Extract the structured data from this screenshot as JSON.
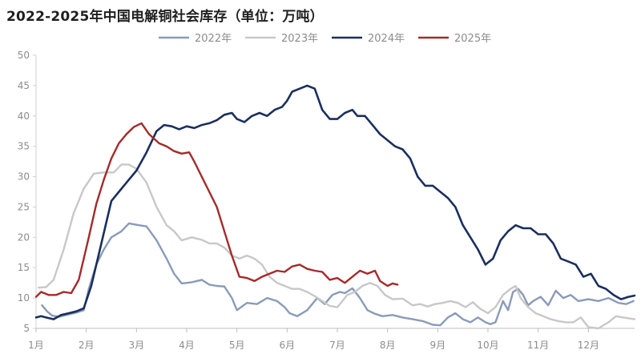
{
  "chart_data": {
    "type": "line",
    "title": "2022-2025年中国电解铜社会库存（单位：万吨）",
    "ylim": [
      5,
      50
    ],
    "yticks": [
      5,
      10,
      15,
      20,
      25,
      30,
      35,
      40,
      45,
      50
    ],
    "xlim": [
      1,
      12.92
    ],
    "xticks": [
      {
        "value": 1,
        "label": "1月"
      },
      {
        "value": 2,
        "label": "2月"
      },
      {
        "value": 3,
        "label": "3月"
      },
      {
        "value": 4,
        "label": "4月"
      },
      {
        "value": 5,
        "label": "5月"
      },
      {
        "value": 6,
        "label": "6月"
      },
      {
        "value": 7,
        "label": "7月"
      },
      {
        "value": 8,
        "label": "8月"
      },
      {
        "value": 9,
        "label": "9月"
      },
      {
        "value": 10,
        "label": "10月"
      },
      {
        "value": 11,
        "label": "11月"
      },
      {
        "value": 12,
        "label": "12月"
      }
    ],
    "grid": false,
    "legend": "top-center",
    "series": [
      {
        "name": "2022年",
        "color": "#8a9bb8",
        "points": [
          [
            1.12,
            8.8
          ],
          [
            1.22,
            7.8
          ],
          [
            1.32,
            7.1
          ],
          [
            1.45,
            6.9
          ],
          [
            1.6,
            7.2
          ],
          [
            1.8,
            7.6
          ],
          [
            1.95,
            8.0
          ],
          [
            2.05,
            11.5
          ],
          [
            2.2,
            15.5
          ],
          [
            2.35,
            18.0
          ],
          [
            2.5,
            20.0
          ],
          [
            2.7,
            21.0
          ],
          [
            2.85,
            22.3
          ],
          [
            3.05,
            22.0
          ],
          [
            3.2,
            21.8
          ],
          [
            3.4,
            19.5
          ],
          [
            3.6,
            16.5
          ],
          [
            3.75,
            14.0
          ],
          [
            3.9,
            12.4
          ],
          [
            4.1,
            12.6
          ],
          [
            4.3,
            13.0
          ],
          [
            4.45,
            12.2
          ],
          [
            4.6,
            12.0
          ],
          [
            4.75,
            11.9
          ],
          [
            4.9,
            10.0
          ],
          [
            5.0,
            8.0
          ],
          [
            5.2,
            9.2
          ],
          [
            5.4,
            9.0
          ],
          [
            5.6,
            10.0
          ],
          [
            5.8,
            9.5
          ],
          [
            5.95,
            8.5
          ],
          [
            6.05,
            7.5
          ],
          [
            6.2,
            7.0
          ],
          [
            6.4,
            8.0
          ],
          [
            6.6,
            10.0
          ],
          [
            6.75,
            9.0
          ],
          [
            6.9,
            10.5
          ],
          [
            7.05,
            11.0
          ],
          [
            7.15,
            10.8
          ],
          [
            7.3,
            11.6
          ],
          [
            7.45,
            10.0
          ],
          [
            7.6,
            8.0
          ],
          [
            7.75,
            7.4
          ],
          [
            7.9,
            7.0
          ],
          [
            8.1,
            7.2
          ],
          [
            8.3,
            6.8
          ],
          [
            8.5,
            6.5
          ],
          [
            8.7,
            6.2
          ],
          [
            8.9,
            5.6
          ],
          [
            9.05,
            5.5
          ],
          [
            9.2,
            6.8
          ],
          [
            9.35,
            7.5
          ],
          [
            9.5,
            6.5
          ],
          [
            9.65,
            6.0
          ],
          [
            9.8,
            6.8
          ],
          [
            9.95,
            6.0
          ],
          [
            10.05,
            5.7
          ],
          [
            10.15,
            6.0
          ],
          [
            10.3,
            9.5
          ],
          [
            10.4,
            8.0
          ],
          [
            10.5,
            11.0
          ],
          [
            10.6,
            11.5
          ],
          [
            10.7,
            10.5
          ],
          [
            10.8,
            8.8
          ],
          [
            10.9,
            9.5
          ],
          [
            11.05,
            10.2
          ],
          [
            11.2,
            8.8
          ],
          [
            11.35,
            11.2
          ],
          [
            11.5,
            10.0
          ],
          [
            11.65,
            10.5
          ],
          [
            11.8,
            9.5
          ],
          [
            12.0,
            9.8
          ],
          [
            12.2,
            9.5
          ],
          [
            12.4,
            10.0
          ],
          [
            12.6,
            9.2
          ],
          [
            12.75,
            9.0
          ],
          [
            12.9,
            9.5
          ]
        ]
      },
      {
        "name": "2023年",
        "color": "#c8c8c8",
        "points": [
          [
            1.05,
            11.7
          ],
          [
            1.2,
            11.8
          ],
          [
            1.35,
            13.0
          ],
          [
            1.55,
            18.0
          ],
          [
            1.75,
            24.0
          ],
          [
            1.95,
            28.0
          ],
          [
            2.15,
            30.5
          ],
          [
            2.35,
            30.7
          ],
          [
            2.55,
            30.7
          ],
          [
            2.7,
            32.0
          ],
          [
            2.85,
            32.0
          ],
          [
            3.0,
            31.3
          ],
          [
            3.2,
            29.0
          ],
          [
            3.4,
            25.0
          ],
          [
            3.6,
            22.0
          ],
          [
            3.75,
            21.0
          ],
          [
            3.9,
            19.5
          ],
          [
            4.1,
            20.0
          ],
          [
            4.3,
            19.6
          ],
          [
            4.45,
            19.0
          ],
          [
            4.6,
            19.0
          ],
          [
            4.75,
            18.3
          ],
          [
            4.9,
            17.0
          ],
          [
            5.05,
            16.5
          ],
          [
            5.2,
            17.0
          ],
          [
            5.35,
            16.5
          ],
          [
            5.5,
            15.5
          ],
          [
            5.65,
            13.5
          ],
          [
            5.8,
            12.5
          ],
          [
            5.95,
            12.0
          ],
          [
            6.1,
            11.5
          ],
          [
            6.25,
            11.5
          ],
          [
            6.4,
            11.0
          ],
          [
            6.55,
            10.3
          ],
          [
            6.7,
            9.5
          ],
          [
            6.85,
            8.7
          ],
          [
            7.0,
            8.5
          ],
          [
            7.1,
            9.5
          ],
          [
            7.2,
            10.5
          ],
          [
            7.35,
            11.0
          ],
          [
            7.5,
            12.0
          ],
          [
            7.65,
            12.5
          ],
          [
            7.8,
            12.0
          ],
          [
            7.95,
            10.5
          ],
          [
            8.1,
            9.8
          ],
          [
            8.3,
            9.9
          ],
          [
            8.5,
            8.8
          ],
          [
            8.65,
            9.0
          ],
          [
            8.8,
            8.6
          ],
          [
            8.95,
            9.0
          ],
          [
            9.1,
            9.2
          ],
          [
            9.25,
            9.5
          ],
          [
            9.4,
            9.2
          ],
          [
            9.55,
            8.5
          ],
          [
            9.7,
            9.3
          ],
          [
            9.85,
            8.2
          ],
          [
            10.0,
            7.5
          ],
          [
            10.15,
            8.5
          ],
          [
            10.3,
            10.5
          ],
          [
            10.45,
            11.5
          ],
          [
            10.55,
            12.0
          ],
          [
            10.65,
            10.0
          ],
          [
            10.8,
            8.5
          ],
          [
            10.95,
            7.5
          ],
          [
            11.1,
            7.0
          ],
          [
            11.25,
            6.5
          ],
          [
            11.4,
            6.2
          ],
          [
            11.55,
            6.0
          ],
          [
            11.7,
            6.0
          ],
          [
            11.85,
            6.8
          ],
          [
            12.0,
            5.2
          ],
          [
            12.2,
            5.0
          ],
          [
            12.4,
            6.0
          ],
          [
            12.55,
            7.0
          ],
          [
            12.7,
            6.8
          ],
          [
            12.85,
            6.6
          ],
          [
            12.92,
            6.5
          ]
        ]
      },
      {
        "name": "2024年",
        "color": "#1a2f5e",
        "points": [
          [
            1.0,
            6.8
          ],
          [
            1.1,
            7.0
          ],
          [
            1.2,
            6.8
          ],
          [
            1.35,
            6.5
          ],
          [
            1.5,
            7.2
          ],
          [
            1.65,
            7.5
          ],
          [
            1.8,
            7.8
          ],
          [
            1.95,
            8.3
          ],
          [
            2.1,
            12.0
          ],
          [
            2.3,
            19.0
          ],
          [
            2.5,
            26.0
          ],
          [
            2.65,
            27.5
          ],
          [
            2.8,
            29.0
          ],
          [
            3.0,
            31.0
          ],
          [
            3.2,
            34.0
          ],
          [
            3.4,
            37.5
          ],
          [
            3.55,
            38.5
          ],
          [
            3.7,
            38.3
          ],
          [
            3.85,
            37.8
          ],
          [
            4.0,
            38.3
          ],
          [
            4.15,
            38.0
          ],
          [
            4.3,
            38.5
          ],
          [
            4.45,
            38.8
          ],
          [
            4.6,
            39.3
          ],
          [
            4.75,
            40.2
          ],
          [
            4.9,
            40.5
          ],
          [
            5.0,
            39.5
          ],
          [
            5.15,
            39.0
          ],
          [
            5.3,
            40.0
          ],
          [
            5.45,
            40.5
          ],
          [
            5.6,
            40.0
          ],
          [
            5.75,
            41.0
          ],
          [
            5.9,
            41.5
          ],
          [
            6.0,
            42.5
          ],
          [
            6.1,
            44.0
          ],
          [
            6.25,
            44.5
          ],
          [
            6.4,
            45.0
          ],
          [
            6.55,
            44.5
          ],
          [
            6.7,
            41.0
          ],
          [
            6.85,
            39.5
          ],
          [
            7.0,
            39.5
          ],
          [
            7.15,
            40.5
          ],
          [
            7.3,
            41.0
          ],
          [
            7.4,
            40.0
          ],
          [
            7.55,
            40.0
          ],
          [
            7.7,
            38.5
          ],
          [
            7.85,
            37.0
          ],
          [
            8.0,
            36.0
          ],
          [
            8.15,
            35.0
          ],
          [
            8.3,
            34.5
          ],
          [
            8.45,
            33.0
          ],
          [
            8.6,
            30.0
          ],
          [
            8.75,
            28.5
          ],
          [
            8.9,
            28.5
          ],
          [
            9.05,
            27.5
          ],
          [
            9.2,
            26.5
          ],
          [
            9.35,
            25.0
          ],
          [
            9.5,
            22.0
          ],
          [
            9.65,
            20.0
          ],
          [
            9.8,
            18.0
          ],
          [
            9.95,
            15.5
          ],
          [
            10.1,
            16.5
          ],
          [
            10.25,
            19.5
          ],
          [
            10.4,
            21.0
          ],
          [
            10.55,
            22.0
          ],
          [
            10.7,
            21.5
          ],
          [
            10.85,
            21.5
          ],
          [
            11.0,
            20.5
          ],
          [
            11.15,
            20.5
          ],
          [
            11.3,
            19.0
          ],
          [
            11.45,
            16.5
          ],
          [
            11.6,
            16.0
          ],
          [
            11.75,
            15.5
          ],
          [
            11.9,
            13.5
          ],
          [
            12.05,
            14.0
          ],
          [
            12.2,
            12.0
          ],
          [
            12.35,
            11.5
          ],
          [
            12.5,
            10.5
          ],
          [
            12.65,
            9.8
          ],
          [
            12.8,
            10.2
          ],
          [
            12.92,
            10.4
          ]
        ]
      },
      {
        "name": "2025年",
        "color": "#a52a2a",
        "points": [
          [
            1.0,
            10.2
          ],
          [
            1.1,
            11.0
          ],
          [
            1.25,
            10.5
          ],
          [
            1.4,
            10.5
          ],
          [
            1.55,
            11.0
          ],
          [
            1.7,
            10.8
          ],
          [
            1.85,
            13.0
          ],
          [
            2.05,
            20.0
          ],
          [
            2.2,
            25.5
          ],
          [
            2.35,
            29.5
          ],
          [
            2.5,
            33.0
          ],
          [
            2.65,
            35.5
          ],
          [
            2.8,
            37.0
          ],
          [
            2.95,
            38.2
          ],
          [
            3.1,
            38.8
          ],
          [
            3.25,
            37.0
          ],
          [
            3.45,
            35.5
          ],
          [
            3.6,
            35.0
          ],
          [
            3.75,
            34.2
          ],
          [
            3.9,
            33.8
          ],
          [
            4.05,
            34.0
          ],
          [
            4.15,
            32.5
          ],
          [
            4.3,
            30.0
          ],
          [
            4.45,
            27.5
          ],
          [
            4.6,
            25.0
          ],
          [
            4.75,
            21.0
          ],
          [
            4.9,
            17.0
          ],
          [
            5.05,
            13.5
          ],
          [
            5.2,
            13.3
          ],
          [
            5.35,
            12.8
          ],
          [
            5.5,
            13.5
          ],
          [
            5.65,
            14.0
          ],
          [
            5.8,
            14.5
          ],
          [
            5.95,
            14.3
          ],
          [
            6.1,
            15.2
          ],
          [
            6.25,
            15.5
          ],
          [
            6.4,
            14.8
          ],
          [
            6.55,
            14.5
          ],
          [
            6.7,
            14.3
          ],
          [
            6.85,
            13.0
          ],
          [
            7.0,
            13.3
          ],
          [
            7.15,
            12.5
          ],
          [
            7.3,
            13.5
          ],
          [
            7.45,
            14.5
          ],
          [
            7.6,
            14.0
          ],
          [
            7.75,
            14.5
          ],
          [
            7.85,
            12.8
          ],
          [
            8.0,
            12.0
          ],
          [
            8.1,
            12.4
          ],
          [
            8.2,
            12.2
          ]
        ]
      }
    ]
  }
}
